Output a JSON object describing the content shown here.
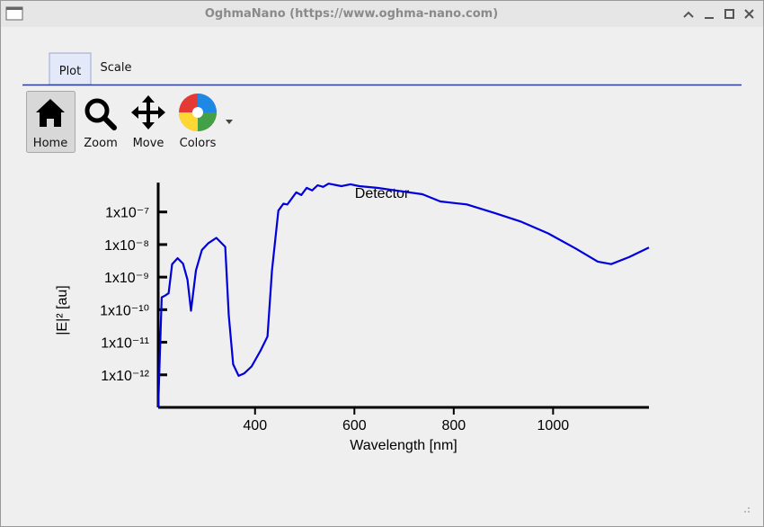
{
  "window": {
    "title": "OghmaNano (https://www.oghma-nano.com)"
  },
  "tabs": [
    "Plot",
    "Scale"
  ],
  "toolbar": [
    "Home",
    "Zoom",
    "Move",
    "Colors"
  ],
  "chart_data": {
    "type": "line",
    "x_label": "Wavelength [nm]",
    "y_label": "|E|² [au]",
    "x": [
      205,
      212,
      219,
      226,
      233,
      244,
      255,
      264,
      271,
      281,
      293,
      306,
      322,
      340,
      347,
      356,
      367,
      378,
      393,
      411,
      425,
      434,
      447,
      457,
      465,
      483,
      493,
      504,
      515,
      526,
      537,
      548,
      574,
      592,
      610,
      646,
      682,
      737,
      773,
      827,
      882,
      936,
      990,
      1045,
      1090,
      1117,
      1153,
      1193
    ],
    "series": [
      {
        "name": "Detector",
        "color": "#0000dd",
        "values": [
          1e-13,
          2.4e-10,
          2.7e-10,
          3.2e-10,
          2.5e-09,
          3.8e-09,
          2.6e-09,
          8.3e-10,
          9.3e-11,
          1.6e-09,
          6.8e-09,
          1.1e-08,
          1.6e-08,
          8.5e-09,
          6.8e-11,
          2.1e-12,
          9.3e-13,
          1.1e-12,
          1.8e-12,
          5.5e-12,
          1.5e-11,
          1.6e-09,
          1.1e-07,
          1.8e-07,
          1.7e-07,
          4e-07,
          3.3e-07,
          5.5e-07,
          4.6e-07,
          6.6e-07,
          5.9e-07,
          7.4e-07,
          6.2e-07,
          7.1e-07,
          6.2e-07,
          5.5e-07,
          4.6e-07,
          3.5e-07,
          2.1e-07,
          1.7e-07,
          9.3e-08,
          5e-08,
          2.2e-08,
          7.6e-09,
          3e-09,
          2.5e-09,
          4.1e-09,
          8.1e-09
        ]
      }
    ],
    "xlim": [
      205,
      1193
    ],
    "xticks": [
      400,
      600,
      800,
      1000
    ],
    "ylim": [
      1e-13,
      8e-07
    ],
    "log_y": true,
    "yticks": [
      {
        "value": 1e-07,
        "label": "1x10⁻⁷"
      },
      {
        "value": 1e-08,
        "label": "1x10⁻⁸"
      },
      {
        "value": 1e-09,
        "label": "1x10⁻⁹"
      },
      {
        "value": 1e-10,
        "label": "1x10⁻¹⁰"
      },
      {
        "value": 1e-11,
        "label": "1x10⁻¹¹"
      },
      {
        "value": 1e-12,
        "label": "1x10⁻¹²"
      }
    ]
  }
}
